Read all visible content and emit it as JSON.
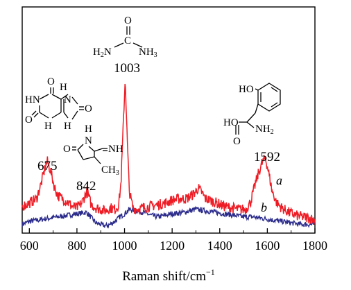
{
  "chart_data": {
    "type": "line",
    "xlabel": "Raman shift/cm",
    "xlabel_sup": "−1",
    "xlim": [
      570,
      1800
    ],
    "x_ticks": [
      "600",
      "800",
      "1000",
      "1200",
      "1400",
      "1600",
      "1800"
    ],
    "y_ticks_shown": false,
    "series": [
      {
        "name": "a",
        "color": "#ee1c25",
        "x": [
          570,
          600,
          630,
          650,
          665,
          675,
          690,
          705,
          720,
          740,
          760,
          780,
          800,
          820,
          842,
          860,
          880,
          900,
          920,
          940,
          960,
          975,
          985,
          995,
          1003,
          1010,
          1020,
          1035,
          1050,
          1080,
          1110,
          1140,
          1170,
          1200,
          1230,
          1260,
          1290,
          1310,
          1325,
          1340,
          1360,
          1390,
          1420,
          1450,
          1480,
          1510,
          1530,
          1550,
          1565,
          1580,
          1592,
          1605,
          1620,
          1640,
          1660,
          1690,
          1720,
          1750,
          1780,
          1800
        ],
        "y": [
          0.15,
          0.17,
          0.2,
          0.3,
          0.4,
          0.45,
          0.38,
          0.28,
          0.22,
          0.2,
          0.18,
          0.15,
          0.14,
          0.17,
          0.25,
          0.16,
          0.14,
          0.13,
          0.12,
          0.14,
          0.13,
          0.16,
          0.3,
          0.7,
          1.0,
          0.65,
          0.25,
          0.14,
          0.13,
          0.14,
          0.15,
          0.16,
          0.17,
          0.19,
          0.2,
          0.2,
          0.23,
          0.27,
          0.24,
          0.2,
          0.19,
          0.17,
          0.15,
          0.14,
          0.13,
          0.13,
          0.18,
          0.3,
          0.38,
          0.44,
          0.47,
          0.38,
          0.25,
          0.17,
          0.14,
          0.11,
          0.09,
          0.08,
          0.07,
          0.06
        ]
      },
      {
        "name": "b",
        "color": "#2b2b8c",
        "x": [
          570,
          600,
          640,
          680,
          720,
          760,
          800,
          840,
          880,
          900,
          920,
          940,
          960,
          980,
          1000,
          1020,
          1050,
          1080,
          1110,
          1140,
          1170,
          1200,
          1250,
          1300,
          1340,
          1380,
          1420,
          1460,
          1500,
          1540,
          1580,
          1620,
          1660,
          1700,
          1740,
          1800
        ],
        "y": [
          0.03,
          0.05,
          0.06,
          0.07,
          0.08,
          0.09,
          0.1,
          0.11,
          0.04,
          0.03,
          0.02,
          0.03,
          0.05,
          0.08,
          0.1,
          0.13,
          0.12,
          0.11,
          0.09,
          0.08,
          0.09,
          0.1,
          0.11,
          0.13,
          0.12,
          0.11,
          0.1,
          0.09,
          0.08,
          0.08,
          0.07,
          0.06,
          0.05,
          0.04,
          0.03,
          0.03
        ]
      }
    ],
    "annotations": {
      "p675": "675",
      "p842": "842",
      "p1003": "1003",
      "p1592": "1592",
      "curve_a": "a",
      "curve_b": "b"
    }
  },
  "structures": {
    "urea": {
      "o": "O",
      "c": "C",
      "h2n": "H2N",
      "nh3": "NH3"
    },
    "uric": {
      "h_top": "H",
      "hn": "HN",
      "o_left": "O",
      "h_left": "H",
      "h_right": "H",
      "o_right": "O",
      "o_top": "O",
      "n": "N"
    },
    "creat": {
      "h": "H",
      "o": "O",
      "nh": "NH",
      "ch3": "CH3",
      "n": "N"
    },
    "tyr": {
      "ho_top": "HO",
      "ho_left": "HO",
      "nh2": "NH2",
      "o": "O"
    }
  }
}
